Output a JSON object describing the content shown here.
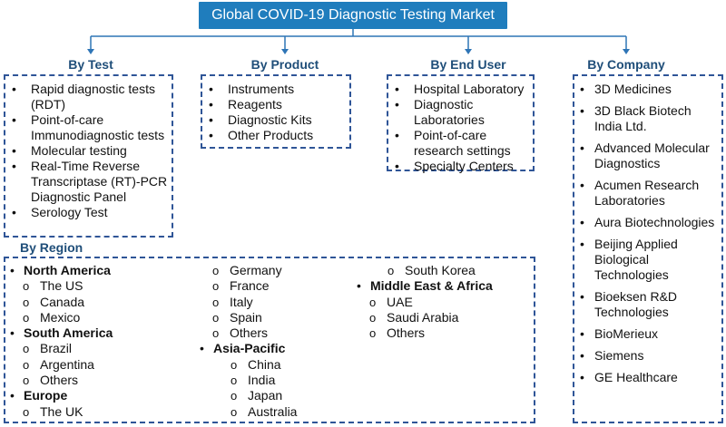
{
  "title": "Global COVID-19 Diagnostic Testing Market",
  "colors": {
    "title_bg": "#1f7dbd",
    "label": "#1f4e79",
    "border": "#2f5597",
    "connector": "#2e75b6"
  },
  "categories": {
    "test": {
      "label": "By Test",
      "items": [
        "Rapid diagnostic tests (RDT)",
        "Point-of-care Immunodiagnostic tests",
        "Molecular testing",
        "Real-Time Reverse Transcriptase (RT)-PCR Diagnostic Panel",
        "Serology Test"
      ]
    },
    "product": {
      "label": "By Product",
      "items": [
        "Instruments",
        "Reagents",
        "Diagnostic Kits",
        "Other Products"
      ]
    },
    "end_user": {
      "label": "By End User",
      "items": [
        "Hospital Laboratory",
        "Diagnostic Laboratories",
        "Point-of-care research settings",
        "Specialty Centers"
      ]
    },
    "company": {
      "label": "By Company",
      "items": [
        "3D Medicines",
        "3D Black Biotech India Ltd.",
        "Advanced Molecular Diagnostics",
        "Acumen Research Laboratories",
        "Aura Biotechnologies",
        "Beijing Applied Biological Technologies",
        "Bioeksen R&D Technologies",
        "BioMerieux",
        "Siemens",
        "GE Healthcare"
      ]
    }
  },
  "region": {
    "label": "By Region",
    "columns": [
      [
        {
          "level": 1,
          "text": "North America"
        },
        {
          "level": 2,
          "text": "The US"
        },
        {
          "level": 2,
          "text": "Canada"
        },
        {
          "level": 2,
          "text": "Mexico"
        },
        {
          "level": 1,
          "text": "South America"
        },
        {
          "level": 2,
          "text": "Brazil"
        },
        {
          "level": 2,
          "text": "Argentina"
        },
        {
          "level": 2,
          "text": "Others"
        },
        {
          "level": 1,
          "text": "Europe"
        },
        {
          "level": 2,
          "text": "The UK"
        }
      ],
      [
        {
          "level": 2,
          "text": "Germany"
        },
        {
          "level": 2,
          "text": "France"
        },
        {
          "level": 2,
          "text": "Italy"
        },
        {
          "level": 2,
          "text": "Spain"
        },
        {
          "level": 2,
          "text": "Others"
        },
        {
          "level": 1,
          "text": "Asia-Pacific"
        },
        {
          "level": 3,
          "text": "China"
        },
        {
          "level": 3,
          "text": "India"
        },
        {
          "level": 3,
          "text": "Japan"
        },
        {
          "level": 3,
          "text": "Australia"
        }
      ],
      [
        {
          "level": 3,
          "text": "South Korea"
        },
        {
          "level": 1,
          "text": "Middle East & Africa"
        },
        {
          "level": 2,
          "text": "UAE"
        },
        {
          "level": 2,
          "text": "Saudi Arabia"
        },
        {
          "level": 2,
          "text": "Others"
        }
      ]
    ]
  }
}
